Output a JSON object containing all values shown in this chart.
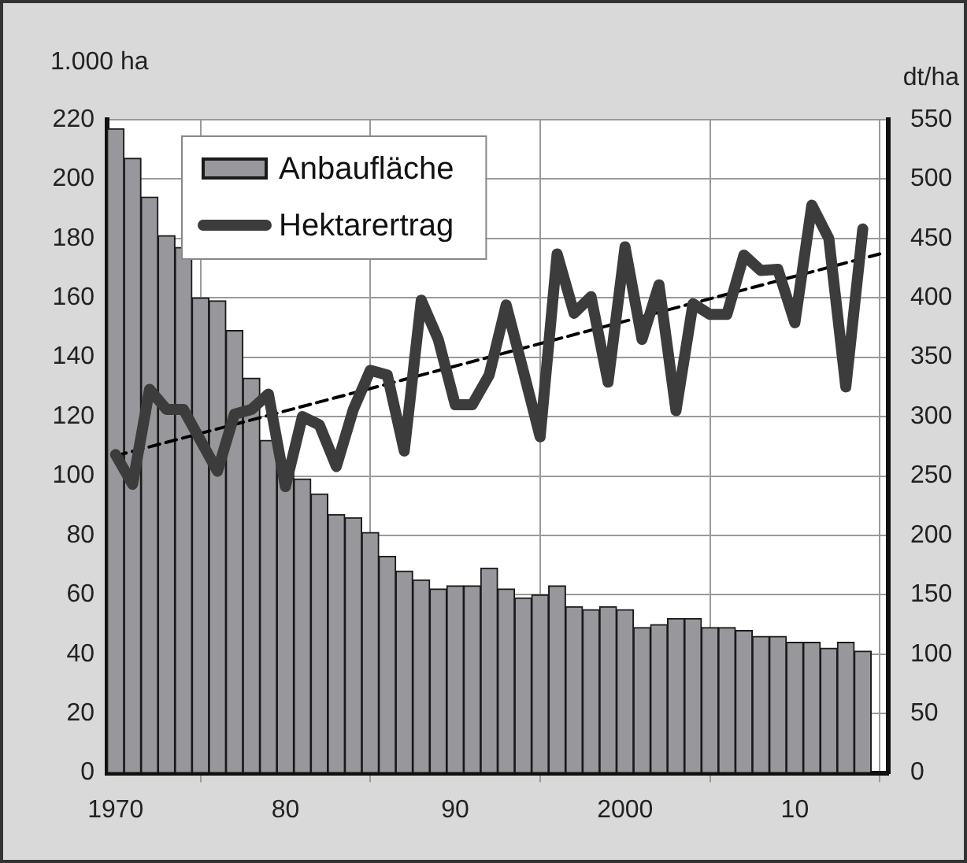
{
  "chart_data": {
    "type": "bar",
    "ylabel": "1.000 ha",
    "y2label": "dt/ha",
    "x": [
      1970,
      1971,
      1972,
      1973,
      1974,
      1975,
      1976,
      1977,
      1978,
      1979,
      1980,
      1981,
      1982,
      1983,
      1984,
      1985,
      1986,
      1987,
      1988,
      1989,
      1990,
      1991,
      1992,
      1993,
      1994,
      1995,
      1996,
      1997,
      1998,
      1999,
      2000,
      2001,
      2002,
      2003,
      2004,
      2005,
      2006,
      2007,
      2008,
      2009,
      2010,
      2011,
      2012,
      2013,
      2014
    ],
    "xlim": [
      1969.5,
      2015.5
    ],
    "xticks": [
      {
        "value": 1970,
        "label": "1970"
      },
      {
        "value": 1980,
        "label": "80"
      },
      {
        "value": 1990,
        "label": "90"
      },
      {
        "value": 2000,
        "label": "2000"
      },
      {
        "value": 2010,
        "label": "10"
      }
    ],
    "ylim": [
      0,
      220
    ],
    "yticks": [
      0,
      20,
      40,
      60,
      80,
      100,
      120,
      140,
      160,
      180,
      200,
      220
    ],
    "y2lim": [
      0,
      550
    ],
    "y2ticks": [
      0,
      50,
      100,
      150,
      200,
      250,
      300,
      350,
      400,
      450,
      500,
      550
    ],
    "grid": true,
    "legend": "top left",
    "marker": "none",
    "series": [
      {
        "name": "Anbaufläche",
        "color": "#98989c",
        "values": [
          217,
          207,
          194,
          181,
          177,
          160,
          159,
          149,
          133,
          112,
          104,
          99,
          94,
          87,
          86,
          81,
          73,
          68,
          65,
          62,
          63,
          63,
          69,
          62,
          59,
          60,
          63,
          56,
          55,
          56,
          55,
          49,
          50,
          52,
          52,
          49,
          49,
          48,
          46,
          46,
          44,
          44,
          42,
          44,
          41
        ]
      },
      {
        "name": "Hektarertrag",
        "type": "line",
        "axis": "y2",
        "color": "#3c3c3c",
        "line_style": "solid",
        "values": [
          268,
          243,
          323,
          306,
          306,
          280,
          254,
          302,
          306,
          319,
          241,
          300,
          293,
          258,
          306,
          339,
          335,
          271,
          398,
          365,
          310,
          310,
          335,
          394,
          339,
          283,
          437,
          387,
          401,
          329,
          443,
          365,
          411,
          305,
          395,
          386,
          386,
          436,
          423,
          424,
          379,
          478,
          450,
          325,
          458
        ]
      },
      {
        "type": "line",
        "axis": "y2",
        "color": "#000000",
        "line_style": "dashed",
        "x": [
          1970,
          2015
        ],
        "values": [
          267,
          437
        ]
      }
    ]
  }
}
